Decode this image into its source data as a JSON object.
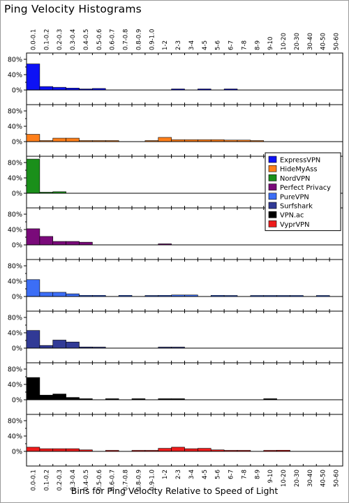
{
  "chart_data": {
    "type": "bar",
    "title": "Ping Velocity Histograms",
    "xlabel": "Bins for Ping Velocity Relative to Speed of Light",
    "ylabel": "",
    "ylim": [
      0,
      1
    ],
    "y_ticks": [
      "0%",
      "40%",
      "80%"
    ],
    "grid": false,
    "legend_position": "right",
    "categories": [
      "0.0-0.1",
      "0.1-0.2",
      "0.2-0.3",
      "0.3-0.4",
      "0.4-0.5",
      "0.5-0.6",
      "0.6-0.7",
      "0.7-0.8",
      "0.8-0.9",
      "0.9-1.0",
      "1-2",
      "2-3",
      "3-4",
      "4-5",
      "5-6",
      "6-7",
      "7-8",
      "8-9",
      "9-10",
      "10-20",
      "20-30",
      "30-40",
      "40-50",
      "50-60"
    ],
    "series": [
      {
        "name": "ExpressVPN",
        "color": "#0d12f5",
        "values": [
          0.68,
          0.09,
          0.07,
          0.05,
          0.02,
          0.04,
          0,
          0,
          0,
          0,
          0,
          0.02,
          0,
          0.02,
          0,
          0.02,
          0,
          0,
          0,
          0,
          0,
          0,
          0,
          0
        ]
      },
      {
        "name": "HideMyAss",
        "color": "#ff7f1a",
        "values": [
          0.19,
          0.02,
          0.09,
          0.09,
          0.01,
          0.01,
          0.01,
          0,
          0,
          0.01,
          0.11,
          0.05,
          0.05,
          0.05,
          0.05,
          0.04,
          0.04,
          0.02,
          0,
          0,
          0,
          0,
          0,
          0
        ]
      },
      {
        "name": "NordVPN",
        "color": "#1a8f1a",
        "values": [
          0.89,
          0.02,
          0.04,
          0,
          0,
          0,
          0,
          0,
          0,
          0,
          0,
          0,
          0,
          0,
          0,
          0,
          0,
          0,
          0,
          0,
          0,
          0,
          0,
          0
        ]
      },
      {
        "name": "Perfect Privacy",
        "color": "#7a0a7a",
        "values": [
          0.42,
          0.22,
          0.09,
          0.09,
          0.07,
          0,
          0,
          0,
          0,
          0,
          0.02,
          0,
          0,
          0,
          0,
          0,
          0,
          0,
          0,
          0,
          0,
          0,
          0,
          0
        ]
      },
      {
        "name": "PureVPN",
        "color": "#3c6ef6",
        "values": [
          0.44,
          0.11,
          0.11,
          0.07,
          0.03,
          0.03,
          0,
          0.03,
          0,
          0.01,
          0.03,
          0.04,
          0.04,
          0,
          0.03,
          0.01,
          0,
          0.01,
          0.01,
          0.01,
          0.01,
          0,
          0.01,
          0
        ]
      },
      {
        "name": "Surfshark",
        "color": "#313a96",
        "values": [
          0.46,
          0.07,
          0.21,
          0.16,
          0.03,
          0.01,
          0,
          0,
          0,
          0,
          0.01,
          0.01,
          0,
          0,
          0,
          0,
          0,
          0,
          0,
          0,
          0,
          0,
          0,
          0
        ]
      },
      {
        "name": "VPN.ac",
        "color": "#000000",
        "values": [
          0.58,
          0.12,
          0.15,
          0.06,
          0.02,
          0,
          0.02,
          0,
          0.01,
          0,
          0.01,
          0.01,
          0,
          0,
          0,
          0,
          0,
          0,
          0.01,
          0,
          0,
          0,
          0,
          0
        ]
      },
      {
        "name": "VyprVPN",
        "color": "#ee1c1c",
        "values": [
          0.11,
          0.07,
          0.07,
          0.07,
          0.04,
          0,
          0.01,
          0,
          0.01,
          0.02,
          0.08,
          0.11,
          0.07,
          0.08,
          0.04,
          0.01,
          0.01,
          0,
          0.01,
          0.03,
          0,
          0,
          0,
          0
        ]
      }
    ]
  }
}
